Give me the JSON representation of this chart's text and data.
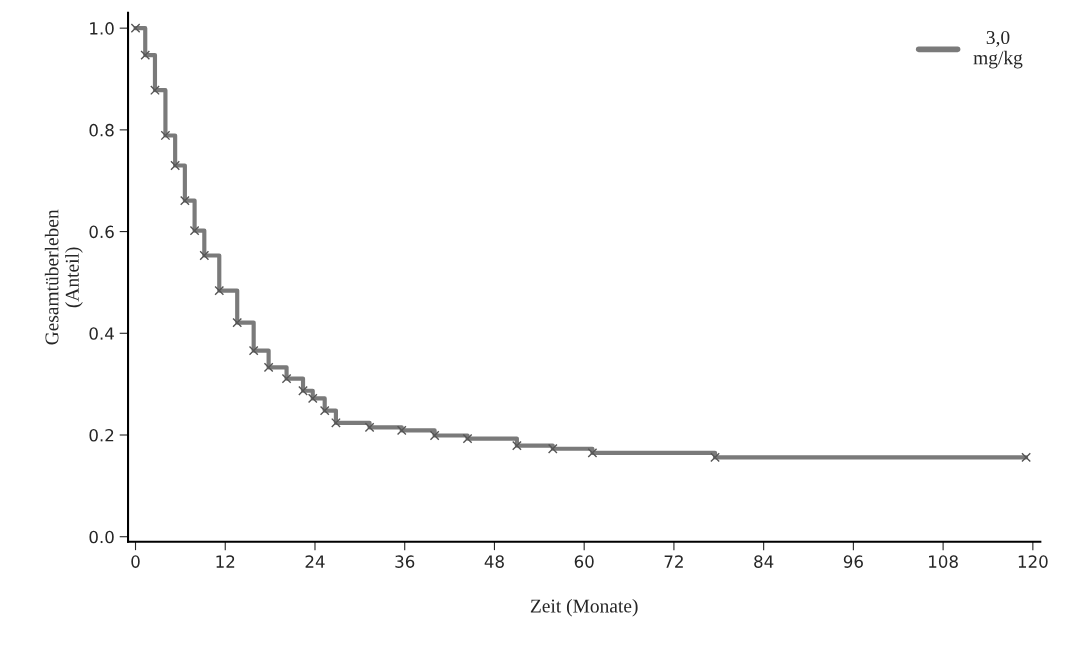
{
  "chart_data": {
    "type": "step",
    "xlabel": "Zeit (Monate)",
    "ylabel": "Gesamtüberleben\n(Anteil)",
    "x": [
      0,
      1.3,
      2.6,
      4.0,
      5.3,
      6.6,
      7.9,
      9.2,
      11.2,
      13.6,
      15.8,
      17.8,
      20.2,
      22.4,
      23.7,
      25.3,
      26.8,
      31.3,
      35.6,
      40.0,
      44.4,
      51.0,
      55.8,
      61.1,
      77.5,
      119.1
    ],
    "series": [
      {
        "name": "3,0\nmg/kg",
        "color": "#7a7a7a",
        "values": [
          1.0,
          0.947,
          0.878,
          0.789,
          0.73,
          0.661,
          0.602,
          0.553,
          0.484,
          0.421,
          0.366,
          0.333,
          0.311,
          0.287,
          0.272,
          0.248,
          0.224,
          0.215,
          0.209,
          0.199,
          0.193,
          0.179,
          0.173,
          0.165,
          0.156,
          0.156
        ]
      }
    ],
    "xlim": [
      -1,
      121
    ],
    "xticks": [
      0,
      12,
      24,
      36,
      48,
      60,
      72,
      84,
      96,
      108,
      120
    ],
    "ylim": [
      -0.01,
      1.03
    ],
    "yticks": [
      {
        "value": 0,
        "label": "0.0"
      },
      {
        "value": 0.2,
        "label": "0.2"
      },
      {
        "value": 0.4,
        "label": "0.4"
      },
      {
        "value": 0.6,
        "label": "0.6"
      },
      {
        "value": 0.8,
        "label": "0.8"
      },
      {
        "value": 1,
        "label": "1.0"
      }
    ],
    "marker": "cross",
    "grid": false,
    "legend": "top right"
  }
}
